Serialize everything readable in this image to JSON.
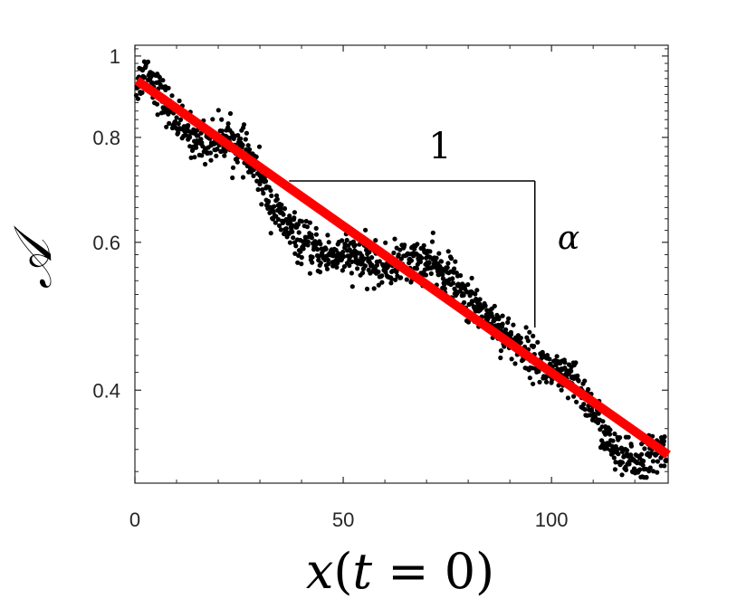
{
  "chart_data": {
    "type": "scatter",
    "xlabel_var": "x",
    "xlabel_open": "(",
    "xlabel_inner_var": "t",
    "xlabel_rest": " = 0)",
    "ylabel": "𝒜",
    "xlim": [
      0,
      128
    ],
    "ylim": [
      0.31,
      1.03
    ],
    "yscale": "log",
    "grid": false,
    "x_ticks": [
      0,
      50,
      100
    ],
    "x_tick_labels": [
      "0",
      "50",
      "100"
    ],
    "y_ticks": [
      0.4,
      0.6,
      0.8,
      1.0
    ],
    "y_tick_labels": [
      "0.4",
      "0.6",
      "0.8",
      "1"
    ],
    "annotations": {
      "run_label": "1",
      "rise_label": "α"
    },
    "slope_triangle": {
      "x_start": 37,
      "x_end": 96,
      "y_top": 0.71,
      "y_bottom": 0.475
    },
    "fit_line": {
      "x_start": 0.5,
      "x_end": 128,
      "y_start": 0.935,
      "y_end": 0.335,
      "color": "#ff0000"
    },
    "scatter_series": {
      "color": "#000000",
      "anchor_x": [
        0,
        3,
        6,
        10,
        14,
        18,
        22,
        26,
        30,
        33,
        36,
        40,
        45,
        50,
        55,
        60,
        65,
        70,
        75,
        80,
        85,
        90,
        95,
        100,
        105,
        110,
        113,
        117,
        122,
        127
      ],
      "anchor_y": [
        0.92,
        0.96,
        0.9,
        0.84,
        0.8,
        0.79,
        0.8,
        0.77,
        0.72,
        0.66,
        0.63,
        0.6,
        0.58,
        0.58,
        0.57,
        0.56,
        0.57,
        0.57,
        0.55,
        0.51,
        0.49,
        0.46,
        0.44,
        0.42,
        0.41,
        0.38,
        0.35,
        0.33,
        0.33,
        0.34
      ],
      "n_points": 1280
    }
  }
}
